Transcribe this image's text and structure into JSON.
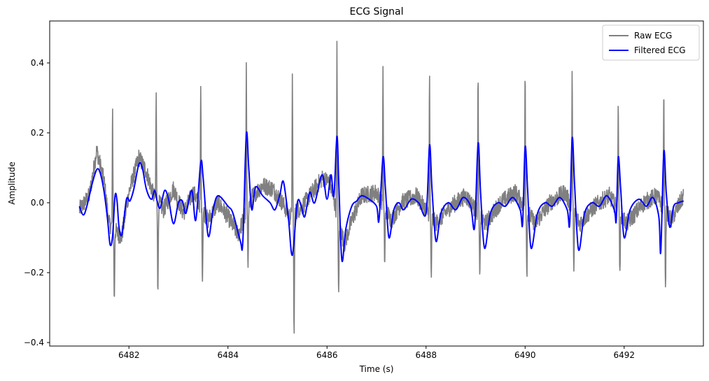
{
  "chart_data": {
    "type": "line",
    "title": "ECG Signal",
    "xlabel": "Time (s)",
    "ylabel": "Amplitude",
    "xlim": [
      6480.4,
      6493.6
    ],
    "ylim": [
      -0.41,
      0.52
    ],
    "x_ticks": [
      6482,
      6484,
      6486,
      6488,
      6490,
      6492
    ],
    "y_ticks": [
      -0.4,
      -0.2,
      0.0,
      0.2,
      0.4
    ],
    "x_tick_labels": [
      "6482",
      "6484",
      "6486",
      "6488",
      "6490",
      "6492"
    ],
    "y_tick_labels": [
      "−0.4",
      "−0.2",
      "0.0",
      "0.2",
      "0.4"
    ],
    "grid": false,
    "legend_position": "top-right",
    "colors": {
      "raw": "#808080",
      "filtered": "#0000ff"
    },
    "x_range": [
      6481.0,
      6493.2
    ],
    "series": [
      {
        "name": "Raw ECG",
        "color": "#808080",
        "beats": [
          {
            "t": 6481.67,
            "r": 0.335,
            "s": -0.205
          },
          {
            "t": 6482.55,
            "r": 0.305,
            "s": -0.27
          },
          {
            "t": 6483.45,
            "r": 0.345,
            "s": -0.2
          },
          {
            "t": 6484.37,
            "r": 0.415,
            "s": -0.15
          },
          {
            "t": 6485.3,
            "r": 0.39,
            "s": -0.36
          },
          {
            "t": 6486.2,
            "r": 0.475,
            "s": -0.225
          },
          {
            "t": 6487.13,
            "r": 0.38,
            "s": -0.17
          },
          {
            "t": 6488.07,
            "r": 0.395,
            "s": -0.19
          },
          {
            "t": 6489.05,
            "r": 0.38,
            "s": -0.19
          },
          {
            "t": 6490.0,
            "r": 0.405,
            "s": -0.18
          },
          {
            "t": 6490.95,
            "r": 0.4,
            "s": -0.17
          },
          {
            "t": 6491.88,
            "r": 0.33,
            "s": -0.19
          },
          {
            "t": 6492.8,
            "r": 0.34,
            "s": -0.21
          }
        ],
        "baseline": [
          [
            6481.0,
            -0.02
          ],
          [
            6481.2,
            0.02
          ],
          [
            6481.35,
            0.15
          ],
          [
            6481.5,
            0.06
          ],
          [
            6481.6,
            -0.06
          ],
          [
            6481.85,
            -0.1
          ],
          [
            6482.0,
            0.03
          ],
          [
            6482.2,
            0.13
          ],
          [
            6482.35,
            0.09
          ],
          [
            6482.5,
            0.02
          ],
          [
            6482.7,
            -0.02
          ],
          [
            6482.9,
            0.04
          ],
          [
            6483.1,
            -0.03
          ],
          [
            6483.3,
            0.03
          ],
          [
            6483.6,
            -0.05
          ],
          [
            6483.8,
            0.0
          ],
          [
            6484.0,
            -0.04
          ],
          [
            6484.2,
            -0.09
          ],
          [
            6484.5,
            0.02
          ],
          [
            6484.7,
            0.05
          ],
          [
            6484.9,
            0.04
          ],
          [
            6485.1,
            0.0
          ],
          [
            6485.25,
            -0.04
          ],
          [
            6485.5,
            -0.01
          ],
          [
            6485.7,
            0.03
          ],
          [
            6485.9,
            0.07
          ],
          [
            6486.05,
            0.06
          ],
          [
            6486.35,
            -0.12
          ],
          [
            6486.5,
            -0.05
          ],
          [
            6486.7,
            0.02
          ],
          [
            6487.0,
            0.03
          ],
          [
            6487.3,
            -0.05
          ],
          [
            6487.5,
            0.0
          ],
          [
            6487.8,
            0.02
          ],
          [
            6488.2,
            -0.06
          ],
          [
            6488.5,
            -0.01
          ],
          [
            6488.8,
            0.02
          ],
          [
            6489.2,
            -0.06
          ],
          [
            6489.5,
            0.0
          ],
          [
            6489.8,
            0.03
          ],
          [
            6490.2,
            -0.06
          ],
          [
            6490.5,
            0.0
          ],
          [
            6490.8,
            0.03
          ],
          [
            6491.1,
            -0.06
          ],
          [
            6491.4,
            -0.01
          ],
          [
            6491.7,
            0.02
          ],
          [
            6492.05,
            -0.06
          ],
          [
            6492.4,
            0.0
          ],
          [
            6492.65,
            0.02
          ],
          [
            6492.95,
            -0.05
          ],
          [
            6493.2,
            0.02
          ]
        ]
      },
      {
        "name": "Filtered ECG",
        "color": "#0000ff",
        "points": [
          [
            6481.0,
            -0.01
          ],
          [
            6481.08,
            -0.035
          ],
          [
            6481.15,
            -0.01
          ],
          [
            6481.25,
            0.05
          ],
          [
            6481.35,
            0.095
          ],
          [
            6481.42,
            0.085
          ],
          [
            6481.5,
            0.03
          ],
          [
            6481.57,
            -0.05
          ],
          [
            6481.62,
            -0.12
          ],
          [
            6481.67,
            -0.095
          ],
          [
            6481.72,
            0.02
          ],
          [
            6481.76,
            0.005
          ],
          [
            6481.8,
            -0.07
          ],
          [
            6481.86,
            -0.09
          ],
          [
            6481.95,
            0.01
          ],
          [
            6482.02,
            0.005
          ],
          [
            6482.1,
            0.04
          ],
          [
            6482.2,
            0.11
          ],
          [
            6482.27,
            0.1
          ],
          [
            6482.35,
            0.04
          ],
          [
            6482.45,
            0.01
          ],
          [
            6482.52,
            0.035
          ],
          [
            6482.57,
            0.005
          ],
          [
            6482.63,
            -0.015
          ],
          [
            6482.72,
            0.035
          ],
          [
            6482.8,
            0.01
          ],
          [
            6482.9,
            -0.06
          ],
          [
            6483.0,
            0.0
          ],
          [
            6483.08,
            0.005
          ],
          [
            6483.15,
            -0.03
          ],
          [
            6483.27,
            0.035
          ],
          [
            6483.35,
            -0.05
          ],
          [
            6483.45,
            0.115
          ],
          [
            6483.5,
            0.07
          ],
          [
            6483.6,
            -0.095
          ],
          [
            6483.7,
            -0.02
          ],
          [
            6483.8,
            0.02
          ],
          [
            6484.0,
            -0.01
          ],
          [
            6484.1,
            -0.03
          ],
          [
            6484.25,
            -0.11
          ],
          [
            6484.3,
            -0.11
          ],
          [
            6484.37,
            0.195
          ],
          [
            6484.42,
            0.1
          ],
          [
            6484.48,
            -0.02
          ],
          [
            6484.56,
            0.045
          ],
          [
            6484.7,
            0.02
          ],
          [
            6484.85,
            0.0
          ],
          [
            6484.95,
            -0.02
          ],
          [
            6485.05,
            0.025
          ],
          [
            6485.12,
            0.06
          ],
          [
            6485.22,
            -0.045
          ],
          [
            6485.3,
            -0.15
          ],
          [
            6485.4,
            0.0
          ],
          [
            6485.48,
            -0.01
          ],
          [
            6485.55,
            -0.04
          ],
          [
            6485.65,
            0.03
          ],
          [
            6485.75,
            0.0
          ],
          [
            6485.9,
            0.08
          ],
          [
            6486.0,
            0.01
          ],
          [
            6486.08,
            0.08
          ],
          [
            6486.14,
            0.02
          ],
          [
            6486.2,
            0.19
          ],
          [
            6486.24,
            0.05
          ],
          [
            6486.3,
            -0.165
          ],
          [
            6486.38,
            -0.075
          ],
          [
            6486.5,
            -0.01
          ],
          [
            6486.6,
            0.005
          ],
          [
            6486.7,
            0.02
          ],
          [
            6486.85,
            0.01
          ],
          [
            6487.0,
            -0.01
          ],
          [
            6487.05,
            -0.05
          ],
          [
            6487.13,
            0.13
          ],
          [
            6487.18,
            0.04
          ],
          [
            6487.25,
            -0.1
          ],
          [
            6487.35,
            -0.02
          ],
          [
            6487.45,
            0.0
          ],
          [
            6487.55,
            -0.02
          ],
          [
            6487.7,
            0.01
          ],
          [
            6487.85,
            0.0
          ],
          [
            6488.0,
            -0.03
          ],
          [
            6488.07,
            0.165
          ],
          [
            6488.12,
            0.04
          ],
          [
            6488.2,
            -0.11
          ],
          [
            6488.3,
            -0.03
          ],
          [
            6488.45,
            0.0
          ],
          [
            6488.6,
            -0.02
          ],
          [
            6488.75,
            0.015
          ],
          [
            6488.9,
            -0.01
          ],
          [
            6488.98,
            -0.07
          ],
          [
            6489.05,
            0.17
          ],
          [
            6489.1,
            0.03
          ],
          [
            6489.18,
            -0.13
          ],
          [
            6489.3,
            -0.03
          ],
          [
            6489.45,
            0.0
          ],
          [
            6489.6,
            -0.01
          ],
          [
            6489.75,
            0.015
          ],
          [
            6489.9,
            -0.02
          ],
          [
            6489.95,
            -0.06
          ],
          [
            6490.0,
            0.16
          ],
          [
            6490.05,
            0.04
          ],
          [
            6490.12,
            -0.13
          ],
          [
            6490.25,
            -0.03
          ],
          [
            6490.4,
            0.0
          ],
          [
            6490.55,
            -0.01
          ],
          [
            6490.7,
            0.015
          ],
          [
            6490.85,
            -0.02
          ],
          [
            6490.9,
            -0.06
          ],
          [
            6490.95,
            0.185
          ],
          [
            6491.0,
            0.05
          ],
          [
            6491.08,
            -0.135
          ],
          [
            6491.2,
            -0.03
          ],
          [
            6491.35,
            0.0
          ],
          [
            6491.5,
            -0.01
          ],
          [
            6491.65,
            0.02
          ],
          [
            6491.8,
            -0.02
          ],
          [
            6491.84,
            -0.05
          ],
          [
            6491.88,
            0.13
          ],
          [
            6491.93,
            0.04
          ],
          [
            6492.0,
            -0.1
          ],
          [
            6492.12,
            -0.02
          ],
          [
            6492.3,
            0.01
          ],
          [
            6492.45,
            -0.01
          ],
          [
            6492.58,
            0.015
          ],
          [
            6492.7,
            -0.04
          ],
          [
            6492.74,
            -0.14
          ],
          [
            6492.8,
            0.145
          ],
          [
            6492.85,
            0.03
          ],
          [
            6492.92,
            -0.07
          ],
          [
            6493.0,
            -0.01
          ],
          [
            6493.1,
            0.0
          ],
          [
            6493.2,
            0.005
          ]
        ]
      }
    ]
  }
}
